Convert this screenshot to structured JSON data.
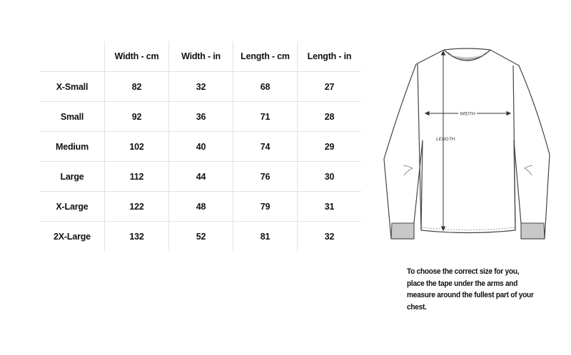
{
  "size_table": {
    "headers": [
      "",
      "Width - cm",
      "Width - in",
      "Length - cm",
      "Length - in"
    ],
    "rows": [
      [
        "X-Small",
        "82",
        "32",
        "68",
        "27"
      ],
      [
        "Small",
        "92",
        "36",
        "71",
        "28"
      ],
      [
        "Medium",
        "102",
        "40",
        "74",
        "29"
      ],
      [
        "Large",
        "112",
        "44",
        "76",
        "30"
      ],
      [
        "X-Large",
        "122",
        "48",
        "79",
        "31"
      ],
      [
        "2X-Large",
        "132",
        "52",
        "81",
        "32"
      ]
    ]
  },
  "diagram": {
    "width_label": "WIDTH",
    "length_label": "LENGTH",
    "cuff_color": "#c8c8c8",
    "line_color": "#444444"
  },
  "note": "To choose the correct size for you, place the tape under the arms and measure around the fullest part of your chest."
}
